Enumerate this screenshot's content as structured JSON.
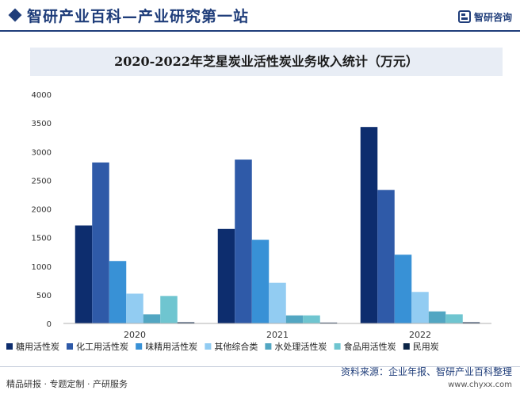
{
  "header": {
    "site_title": "智研产业百科—产业研究第一站",
    "brand_name": "智研咨询",
    "brand_color": "#1f3d7a"
  },
  "chart_data": {
    "type": "bar",
    "title": "2020-2022年芝星炭业活性炭业务收入统计（万元）",
    "xlabel": "",
    "ylabel": "",
    "categories": [
      "2020",
      "2021",
      "2022"
    ],
    "ylim": [
      0,
      4000
    ],
    "yticks": [
      0,
      500,
      1000,
      1500,
      2000,
      2500,
      3000,
      3500,
      4000
    ],
    "grid": false,
    "legend_position": "bottom",
    "series": [
      {
        "name": "糖用活性炭",
        "color": "#0d2d6e",
        "values": [
          1710,
          1650,
          3430
        ]
      },
      {
        "name": "化工用活性炭",
        "color": "#2f5aa8",
        "values": [
          2810,
          2860,
          2330
        ]
      },
      {
        "name": "味精用活性炭",
        "color": "#3891d6",
        "values": [
          1090,
          1460,
          1200
        ]
      },
      {
        "name": "其他综合类",
        "color": "#92ccf2",
        "values": [
          520,
          710,
          550
        ]
      },
      {
        "name": "水处理活性炭",
        "color": "#52a6c2",
        "values": [
          160,
          140,
          210
        ]
      },
      {
        "name": "食品用活性炭",
        "color": "#6fc5d0",
        "values": [
          480,
          140,
          160
        ]
      },
      {
        "name": "民用炭",
        "color": "#0b2446",
        "values": [
          20,
          15,
          20
        ]
      }
    ]
  },
  "footer": {
    "left": "精品研报 · 专题定制 · 产研服务",
    "source": "资料来源：企业年报、智研产业百科整理",
    "url": "www.chyxx.com"
  }
}
